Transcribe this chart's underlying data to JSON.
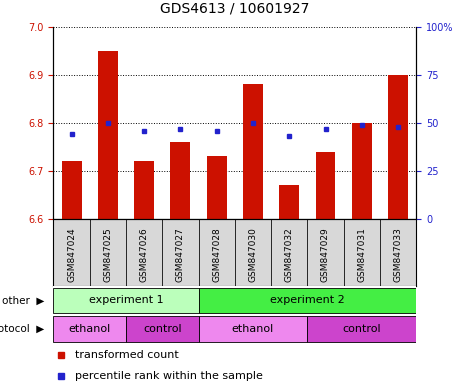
{
  "title": "GDS4613 / 10601927",
  "samples": [
    "GSM847024",
    "GSM847025",
    "GSM847026",
    "GSM847027",
    "GSM847028",
    "GSM847030",
    "GSM847032",
    "GSM847029",
    "GSM847031",
    "GSM847033"
  ],
  "transformed_count": [
    6.72,
    6.95,
    6.72,
    6.76,
    6.73,
    6.88,
    6.67,
    6.74,
    6.8,
    6.9
  ],
  "percentile_rank": [
    44,
    50,
    46,
    47,
    46,
    50,
    43,
    47,
    49,
    48
  ],
  "ylim_left": [
    6.6,
    7.0
  ],
  "ylim_right": [
    0,
    100
  ],
  "yticks_left": [
    6.6,
    6.7,
    6.8,
    6.9,
    7.0
  ],
  "yticks_right": [
    0,
    25,
    50,
    75,
    100
  ],
  "bar_color": "#cc1100",
  "dot_color": "#2222cc",
  "bar_bottom": 6.6,
  "groups_other": [
    {
      "label": "experiment 1",
      "start": 0,
      "end": 4,
      "color": "#bbffbb"
    },
    {
      "label": "experiment 2",
      "start": 4,
      "end": 10,
      "color": "#44ee44"
    }
  ],
  "groups_protocol": [
    {
      "label": "ethanol",
      "start": 0,
      "end": 2,
      "color": "#ee88ee"
    },
    {
      "label": "control",
      "start": 2,
      "end": 4,
      "color": "#cc44cc"
    },
    {
      "label": "ethanol",
      "start": 4,
      "end": 7,
      "color": "#ee88ee"
    },
    {
      "label": "control",
      "start": 7,
      "end": 10,
      "color": "#cc44cc"
    }
  ],
  "legend_items": [
    {
      "label": "transformed count",
      "color": "#cc1100"
    },
    {
      "label": "percentile rank within the sample",
      "color": "#2222cc"
    }
  ],
  "title_fontsize": 10,
  "tick_fontsize": 7,
  "sample_fontsize": 6.5,
  "group_fontsize": 8,
  "legend_fontsize": 8
}
